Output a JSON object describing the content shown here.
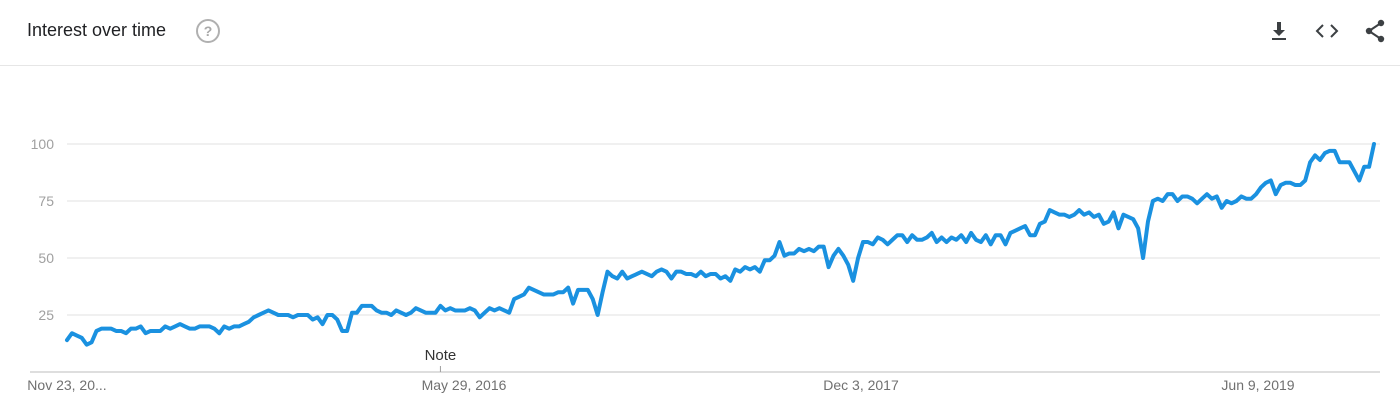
{
  "header": {
    "title": "Interest over time",
    "help_icon": "help-circle-icon",
    "actions": [
      {
        "name": "download",
        "icon": "download-icon"
      },
      {
        "name": "embed",
        "icon": "code-icon"
      },
      {
        "name": "share",
        "icon": "share-icon"
      }
    ]
  },
  "colors": {
    "line": "#1a91e0",
    "grid": "#e0e0e0",
    "axis_text": "#a0a0a0"
  },
  "chart_data": {
    "type": "line",
    "title": "Interest over time",
    "xlabel": "",
    "ylabel": "",
    "ylim": [
      0,
      100
    ],
    "yticks": [
      25,
      50,
      75,
      100
    ],
    "grid": true,
    "x_tick_labels": [
      "Nov 23, 20...",
      "May 29, 2016",
      "Dec 3, 2017",
      "Jun 9, 2019"
    ],
    "annotations": [
      {
        "label": "Note",
        "week_index": 76
      }
    ],
    "series": [
      {
        "values": [
          14,
          17,
          16,
          15,
          12,
          13,
          18,
          19,
          19,
          19,
          18,
          18,
          17,
          19,
          19,
          20,
          17,
          18,
          18,
          18,
          20,
          19,
          20,
          21,
          20,
          19,
          19,
          20,
          20,
          20,
          19,
          17,
          20,
          19,
          20,
          20,
          21,
          22,
          24,
          25,
          26,
          27,
          26,
          25,
          25,
          25,
          24,
          25,
          25,
          25,
          23,
          24,
          21,
          25,
          25,
          23,
          18,
          18,
          26,
          26,
          29,
          29,
          29,
          27,
          26,
          26,
          25,
          27,
          26,
          25,
          26,
          28,
          27,
          26,
          26,
          26,
          29,
          27,
          28,
          27,
          27,
          27,
          28,
          27,
          24,
          26,
          28,
          27,
          28,
          27,
          26,
          32,
          33,
          34,
          37,
          36,
          35,
          34,
          34,
          34,
          35,
          35,
          37,
          30,
          36,
          36,
          36,
          32,
          25,
          35,
          44,
          42,
          41,
          44,
          41,
          42,
          43,
          44,
          43,
          42,
          44,
          45,
          44,
          41,
          44,
          44,
          43,
          43,
          42,
          44,
          42,
          43,
          43,
          41,
          42,
          40,
          45,
          44,
          46,
          45,
          46,
          44,
          49,
          49,
          51,
          57,
          51,
          52,
          52,
          54,
          53,
          54,
          53,
          55,
          55,
          46,
          51,
          54,
          51,
          47,
          40,
          50,
          57,
          57,
          56,
          59,
          58,
          56,
          58,
          60,
          60,
          57,
          60,
          58,
          58,
          59,
          61,
          57,
          59,
          57,
          59,
          58,
          60,
          57,
          61,
          58,
          57,
          60,
          56,
          60,
          60,
          56,
          61,
          62,
          63,
          64,
          60,
          60,
          65,
          66,
          71,
          70,
          69,
          69,
          68,
          69,
          71,
          69,
          70,
          68,
          69,
          65,
          66,
          70,
          63,
          69,
          68,
          67,
          63,
          50,
          66,
          75,
          76,
          75,
          78,
          78,
          75,
          77,
          77,
          76,
          74,
          76,
          78,
          76,
          77,
          72,
          75,
          74,
          75,
          77,
          76,
          76,
          78,
          81,
          83,
          84,
          78,
          82,
          83,
          83,
          82,
          82,
          84,
          92,
          95,
          93,
          96,
          97,
          97,
          92,
          92,
          92,
          88,
          84,
          90,
          90,
          100
        ]
      }
    ]
  }
}
